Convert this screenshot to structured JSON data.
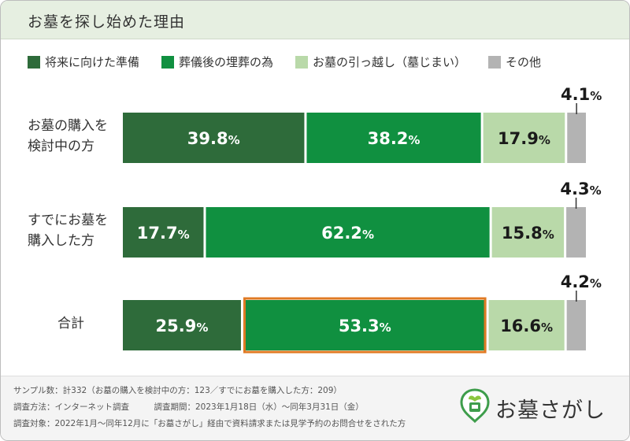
{
  "header": {
    "title": "お墓を探し始めた理由"
  },
  "colors": {
    "dark_green": "#2e6b3a",
    "green": "#109040",
    "light_green": "#b9d9a9",
    "gray": "#b3b3b3",
    "highlight": "#e07a23",
    "header_bg": "#e6efe1"
  },
  "rows": [
    {
      "label_line1": "お墓の購入を",
      "label_line2": "検討中の方"
    },
    {
      "label_line1": "すでにお墓を",
      "label_line2": "購入した方"
    },
    {
      "label_line1": "合計",
      "label_line2": ""
    }
  ],
  "chart_data": {
    "type": "bar",
    "orientation": "horizontal-stacked-100",
    "categories": [
      "お墓の購入を検討中の方",
      "すでにお墓を購入した方",
      "合計"
    ],
    "series": [
      {
        "name": "将来に向けた準備",
        "color": "#2e6b3a",
        "values": [
          39.8,
          17.7,
          25.9
        ]
      },
      {
        "name": "葬儀後の埋葬の為",
        "color": "#109040",
        "values": [
          38.2,
          62.2,
          53.3
        ]
      },
      {
        "name": "お墓の引っ越し（墓じまい）",
        "color": "#b9d9a9",
        "values": [
          17.9,
          15.8,
          16.6
        ]
      },
      {
        "name": "その他",
        "color": "#b3b3b3",
        "values": [
          4.1,
          4.3,
          4.2
        ]
      }
    ],
    "value_suffix": "%",
    "highlight": {
      "row": 2,
      "series": 1
    },
    "legend_position": "top"
  },
  "footer": {
    "note1": "サンプル数：計332（お墓の購入を検討中の方：123／すでにお墓を購入した方：209）",
    "note2": "調査方法：インターネット調査　　　調査期間：2023年1月18日（水）～同年3月31日（金）",
    "note3": "調査対象：2022年1月～同年12月に「お墓さがし」経由で資料請求または見学予約のお問合せをされた方"
  },
  "logo": {
    "text": "お墓さがし",
    "icon": "grave-leaf-logo-icon"
  }
}
